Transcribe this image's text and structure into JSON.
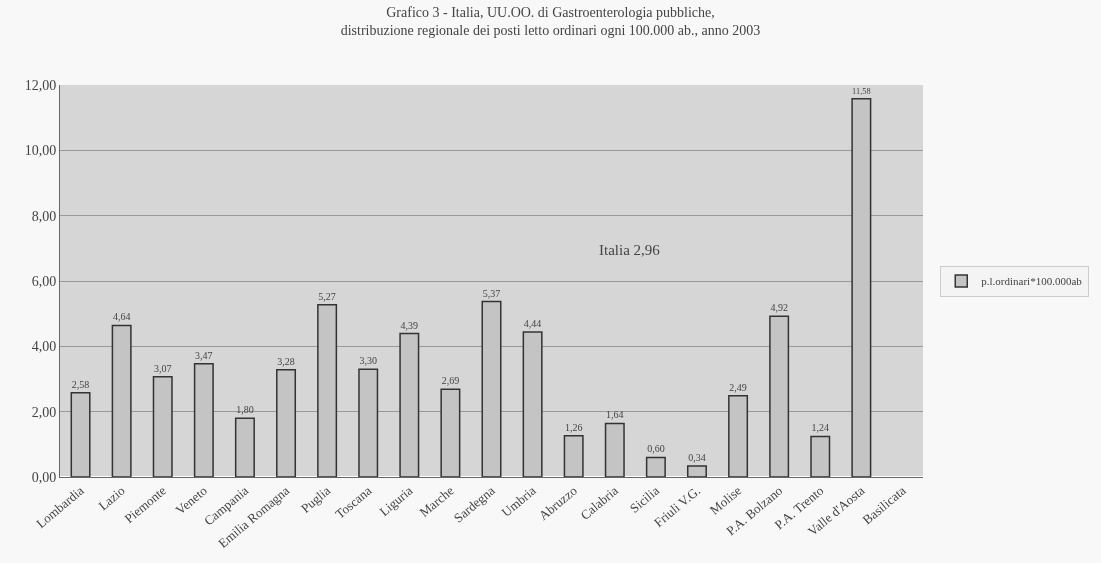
{
  "chart_data": {
    "type": "bar",
    "title": "Grafico 3 - Italia, UU.OO. di Gastroenterologia pubbliche,\ndistribuzione regionale dei posti letto ordinari ogni 100.000 ab., anno 2003",
    "categories": [
      "Lombardia",
      "Lazio",
      "Piemonte",
      "Veneto",
      "Campania",
      "Emilia Romagna",
      "Puglia",
      "Toscana",
      "Liguria",
      "Marche",
      "Sardegna",
      "Umbria",
      "Abruzzo",
      "Calabria",
      "Sicilia",
      "Friuli V.G.",
      "Molise",
      "P.A. Bolzano",
      "P.A. Trento",
      "Valle d'Aosta",
      "Basilicata"
    ],
    "series": [
      {
        "name": "p.l.ordinari*100.000ab",
        "color": "#c4c4c4",
        "values": [
          2.58,
          4.64,
          3.07,
          3.47,
          1.8,
          3.28,
          5.27,
          3.3,
          4.39,
          2.69,
          5.37,
          4.44,
          1.26,
          1.64,
          0.6,
          0.34,
          2.49,
          4.92,
          1.24,
          11.58,
          null
        ],
        "value_labels": [
          "2,58",
          "4,64",
          "3,07",
          "3,47",
          "1,80",
          "3,28",
          "5,27",
          "3,30",
          "4,39",
          "2,69",
          "5,37",
          "4,44",
          "1,26",
          "1,64",
          "0,60",
          "0,34",
          "2,49",
          "4,92",
          "1,24",
          "11,58",
          null
        ]
      }
    ],
    "annotations": [
      "Italia 2,96"
    ],
    "ylim": [
      0,
      12
    ],
    "yticks": [
      {
        "value": 0,
        "label": "0,00"
      },
      {
        "value": 2,
        "label": "2,00"
      },
      {
        "value": 4,
        "label": "4,00"
      },
      {
        "value": 6,
        "label": "6,00"
      },
      {
        "value": 8,
        "label": "8,00"
      },
      {
        "value": 10,
        "label": "10,00"
      },
      {
        "value": 12,
        "label": "12,00"
      }
    ],
    "grid": "y",
    "legend": "right"
  }
}
